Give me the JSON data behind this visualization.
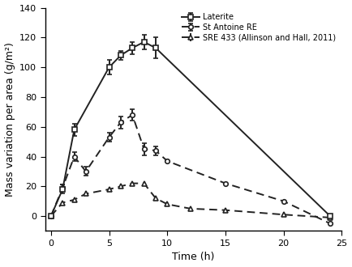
{
  "title": "",
  "xlabel": "Time (h)",
  "ylabel": "Mass variation per area (g/m²)",
  "xlim": [
    -0.5,
    25
  ],
  "ylim": [
    -10,
    140
  ],
  "yticks": [
    0,
    20,
    40,
    60,
    80,
    100,
    120,
    140
  ],
  "xticks": [
    0,
    5,
    10,
    15,
    20,
    25
  ],
  "laterite": {
    "x": [
      0,
      1,
      2,
      5,
      6,
      7,
      8,
      9,
      24
    ],
    "y": [
      0,
      18,
      58,
      100,
      108,
      113,
      117,
      113,
      0
    ],
    "yerr": [
      0,
      3,
      4,
      5,
      3,
      4,
      5,
      7,
      1
    ],
    "label": "Laterite",
    "color": "#222222",
    "linestyle": "-",
    "marker": "s",
    "markersize": 4,
    "linewidth": 1.4
  },
  "st_antoine": {
    "x": [
      0,
      1,
      2,
      3,
      5,
      6,
      7,
      8,
      9,
      10,
      15,
      20,
      24
    ],
    "y": [
      0,
      19,
      40,
      30,
      53,
      63,
      68,
      45,
      44,
      37,
      22,
      10,
      -5
    ],
    "yerr": [
      0,
      2,
      3,
      3,
      3,
      4,
      4,
      4,
      3,
      0,
      0,
      0,
      0
    ],
    "label": "St Antoine RE",
    "color": "#222222",
    "linestyle": "--",
    "marker": "o",
    "markersize": 4,
    "linewidth": 1.4,
    "dashes": [
      5,
      3
    ]
  },
  "sre433": {
    "x": [
      0,
      1,
      2,
      3,
      5,
      6,
      7,
      8,
      9,
      10,
      12,
      15,
      20,
      24
    ],
    "y": [
      0,
      9,
      11,
      15,
      18,
      20,
      22,
      22,
      12,
      8,
      5,
      4,
      1,
      -1
    ],
    "yerr": [
      0,
      0,
      0,
      0,
      0,
      0,
      0,
      0,
      0,
      0,
      0,
      0,
      0,
      0
    ],
    "label": "SRE 433 (Allinson and Hall, 2011)",
    "color": "#222222",
    "linestyle": "--",
    "marker": "^",
    "markersize": 4,
    "linewidth": 1.4,
    "dashes": [
      5,
      3
    ]
  },
  "background_color": "#ffffff",
  "legend_fontsize": 7.0,
  "axis_fontsize": 9,
  "tick_fontsize": 8,
  "figsize": [
    4.34,
    3.3
  ],
  "dpi": 100
}
